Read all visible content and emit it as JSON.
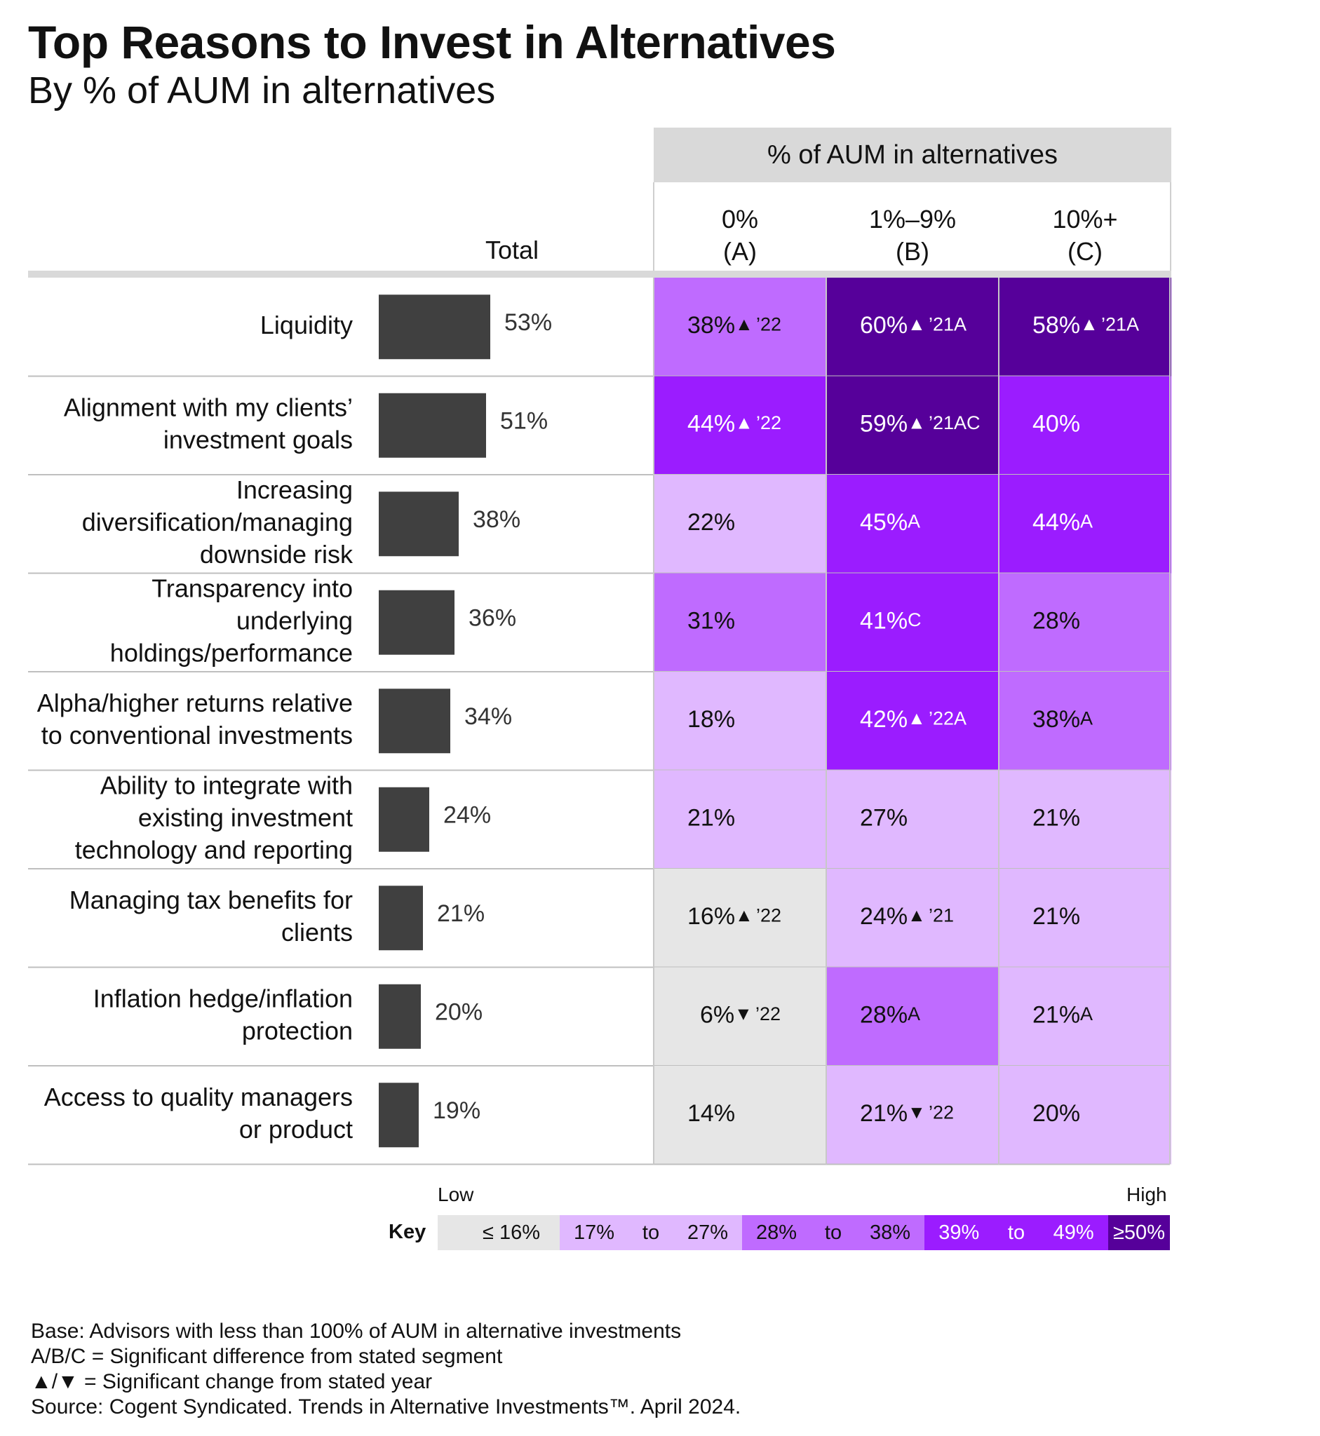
{
  "title": "Top Reasons to Invest in Alternatives",
  "subtitle": "By % of AUM in alternatives",
  "table": {
    "group_header": "% of AUM in alternatives",
    "total_header": "Total",
    "columns": [
      {
        "line1": "0%",
        "line2": "(A)"
      },
      {
        "line1": "1%–9%",
        "line2": "(B)"
      },
      {
        "line1": "10%+",
        "line2": "(C)"
      }
    ]
  },
  "chart_data": {
    "type": "table",
    "bar_series_name": "Total",
    "segment_names": [
      "0% (A)",
      "1%–9% (B)",
      "10%+ (C)"
    ],
    "rows": [
      {
        "label": [
          "Liquidity"
        ],
        "total": 53,
        "cells": [
          {
            "value": 38,
            "arrow": "up",
            "note": "’22"
          },
          {
            "value": 60,
            "arrow": "up",
            "note": "’21A"
          },
          {
            "value": 58,
            "arrow": "up",
            "note": "’21A"
          }
        ]
      },
      {
        "label": [
          "Alignment with my clients’",
          "investment goals"
        ],
        "total": 51,
        "cells": [
          {
            "value": 44,
            "arrow": "up",
            "note": "’22"
          },
          {
            "value": 59,
            "arrow": "up",
            "note": "’21AC"
          },
          {
            "value": 40,
            "arrow": "",
            "note": ""
          }
        ]
      },
      {
        "label": [
          "Increasing",
          "diversification/managing",
          "downside risk"
        ],
        "total": 38,
        "cells": [
          {
            "value": 22,
            "arrow": "",
            "note": ""
          },
          {
            "value": 45,
            "arrow": "",
            "note": "A"
          },
          {
            "value": 44,
            "arrow": "",
            "note": "A"
          }
        ]
      },
      {
        "label": [
          "Transparency into",
          "underlying",
          "holdings/performance"
        ],
        "total": 36,
        "cells": [
          {
            "value": 31,
            "arrow": "",
            "note": ""
          },
          {
            "value": 41,
            "arrow": "",
            "note": "C"
          },
          {
            "value": 28,
            "arrow": "",
            "note": ""
          }
        ]
      },
      {
        "label": [
          "Alpha/higher returns relative",
          "to conventional investments"
        ],
        "total": 34,
        "cells": [
          {
            "value": 18,
            "arrow": "",
            "note": ""
          },
          {
            "value": 42,
            "arrow": "up",
            "note": "’22A"
          },
          {
            "value": 38,
            "arrow": "",
            "note": "A"
          }
        ]
      },
      {
        "label": [
          "Ability to integrate with",
          "existing investment",
          "technology and reporting"
        ],
        "total": 24,
        "cells": [
          {
            "value": 21,
            "arrow": "",
            "note": ""
          },
          {
            "value": 27,
            "arrow": "",
            "note": ""
          },
          {
            "value": 21,
            "arrow": "",
            "note": ""
          }
        ]
      },
      {
        "label": [
          "Managing tax benefits for",
          "clients"
        ],
        "total": 21,
        "cells": [
          {
            "value": 16,
            "arrow": "up",
            "note": "’22"
          },
          {
            "value": 24,
            "arrow": "up",
            "note": "’21"
          },
          {
            "value": 21,
            "arrow": "",
            "note": ""
          }
        ]
      },
      {
        "label": [
          "Inflation hedge/inflation",
          "protection"
        ],
        "total": 20,
        "cells": [
          {
            "value": 6,
            "arrow": "down",
            "note": "’22"
          },
          {
            "value": 28,
            "arrow": "",
            "note": "A"
          },
          {
            "value": 21,
            "arrow": "",
            "note": "A"
          }
        ]
      },
      {
        "label": [
          "Access to quality managers",
          "or product"
        ],
        "total": 19,
        "cells": [
          {
            "value": 14,
            "arrow": "",
            "note": ""
          },
          {
            "value": 21,
            "arrow": "down",
            "note": "’22"
          },
          {
            "value": 20,
            "arrow": "",
            "note": ""
          }
        ]
      }
    ],
    "value_suffix": "%",
    "colors": {
      "bar": "#404040",
      "low": "#e6e6e6",
      "mid_low": "#e0b8ff",
      "mid": "#bf6bff",
      "mid_high": "#9b1cff",
      "high": "#56009a"
    }
  },
  "key": {
    "label": "Key",
    "low": "Low",
    "high": "High",
    "to": "to",
    "bins": [
      {
        "text": "≤ 16%",
        "color": "#e6e6e6"
      },
      {
        "from": "17%",
        "to": "27%",
        "color": "#e0b8ff"
      },
      {
        "from": "28%",
        "to": "38%",
        "color": "#bf6bff"
      },
      {
        "from": "39%",
        "to": "49%",
        "color": "#9b1cff"
      },
      {
        "text": "≥50%",
        "color": "#56009a"
      }
    ]
  },
  "footnotes": {
    "base": "Base: Advisors with less than 100% of AUM in alternative investments",
    "segment": "A/B/C = Significant difference from stated segment",
    "year": "▲/▼ = Significant change from stated year",
    "source": "Source: Cogent Syndicated. Trends in Alternative Investments™. April 2024."
  }
}
